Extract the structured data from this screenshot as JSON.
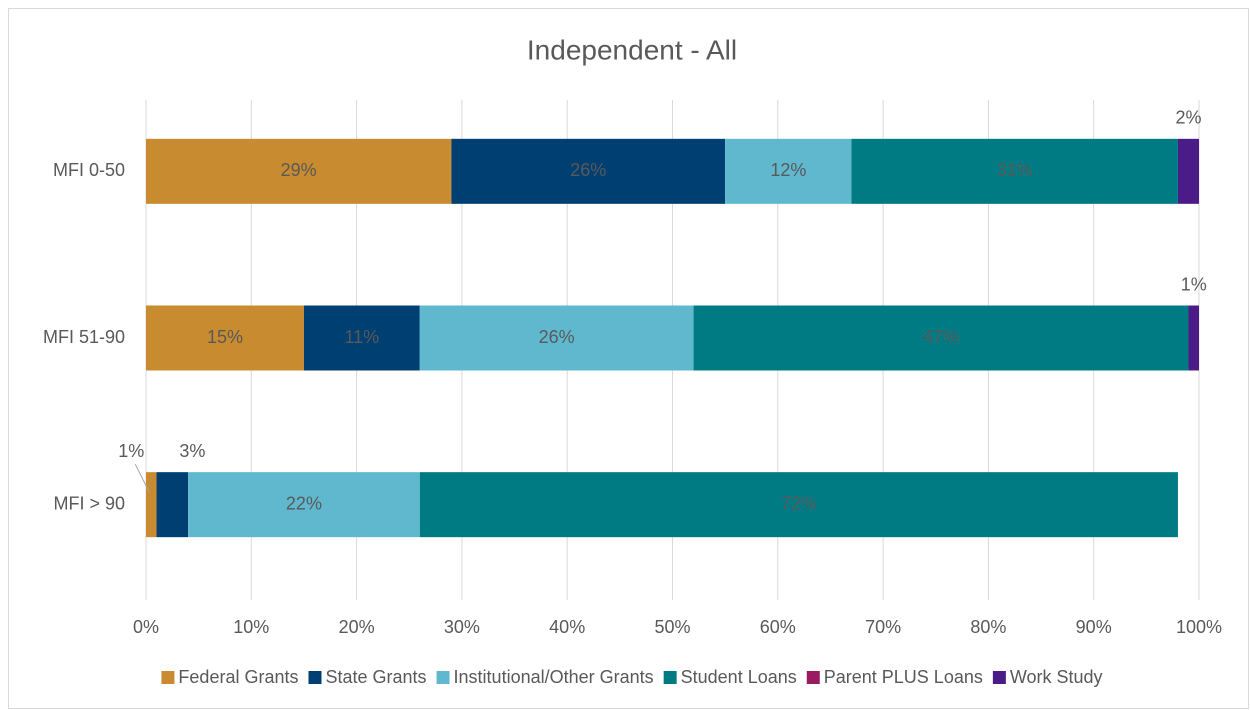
{
  "chart_data": {
    "type": "stacked-bar-horizontal",
    "title": "Independent - All",
    "categories": [
      "MFI 0-50",
      "MFI 51-90",
      "MFI > 90"
    ],
    "series": [
      {
        "name": "Federal Grants",
        "color": "#c88b2f",
        "values": [
          29,
          15,
          1
        ],
        "value_labels": [
          "29%",
          "15%",
          "1%"
        ]
      },
      {
        "name": "State Grants",
        "color": "#003f72",
        "values": [
          26,
          11,
          3
        ],
        "value_labels": [
          "26%",
          "11%",
          "3%"
        ]
      },
      {
        "name": "Institutional/Other Grants",
        "color": "#60b8cf",
        "values": [
          12,
          26,
          22
        ],
        "value_labels": [
          "12%",
          "26%",
          "22%"
        ]
      },
      {
        "name": "Student Loans",
        "color": "#007b84",
        "values": [
          31,
          47,
          72
        ],
        "value_labels": [
          "31%",
          "47%",
          "72%"
        ]
      },
      {
        "name": "Parent PLUS Loans",
        "color": "#9b1b63",
        "values": [
          0,
          0,
          0
        ]
      },
      {
        "name": "Work Study",
        "color": "#4b1c87",
        "values": [
          2,
          1,
          0
        ],
        "value_labels": [
          "2%",
          "1%",
          null
        ]
      }
    ],
    "xlim": [
      0,
      100
    ],
    "xticks": [
      {
        "value": 0,
        "label": "0%"
      },
      {
        "value": 10,
        "label": "10%"
      },
      {
        "value": 20,
        "label": "20%"
      },
      {
        "value": 30,
        "label": "30%"
      },
      {
        "value": 40,
        "label": "40%"
      },
      {
        "value": 50,
        "label": "50%"
      },
      {
        "value": 60,
        "label": "60%"
      },
      {
        "value": 70,
        "label": "70%"
      },
      {
        "value": 80,
        "label": "80%"
      },
      {
        "value": 90,
        "label": "90%"
      },
      {
        "value": 100,
        "label": "100%"
      }
    ],
    "grid": true,
    "legend": "bottom"
  }
}
